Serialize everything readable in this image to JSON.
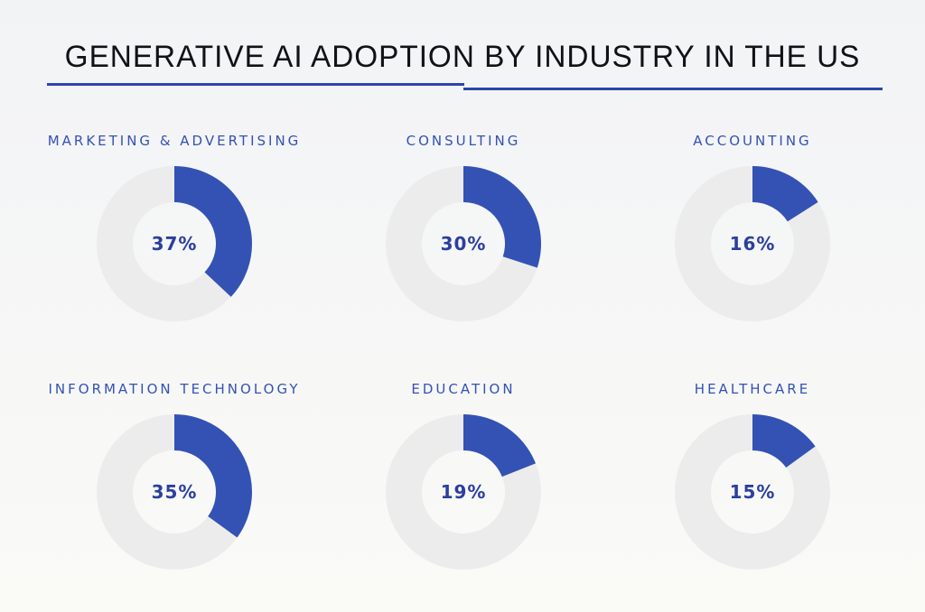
{
  "title": "GENERATIVE AI ADOPTION BY INDUSTRY IN THE US",
  "colors": {
    "accent": "#3452b4",
    "track": "#ececec",
    "title": "#111116",
    "rule": "#2d45a8"
  },
  "chart_data": {
    "type": "pie",
    "variant": "donut",
    "title": "GENERATIVE AI ADOPTION BY INDUSTRY IN THE US",
    "unit": "%",
    "items": [
      {
        "label": "MARKETING & ADVERTISING",
        "value": 37,
        "display": "37%"
      },
      {
        "label": "CONSULTING",
        "value": 30,
        "display": "30%"
      },
      {
        "label": "ACCOUNTING",
        "value": 16,
        "display": "16%"
      },
      {
        "label": "INFORMATION TECHNOLOGY",
        "value": 35,
        "display": "35%"
      },
      {
        "label": "EDUCATION",
        "value": 19,
        "display": "19%"
      },
      {
        "label": "HEALTHCARE",
        "value": 15,
        "display": "15%"
      }
    ]
  }
}
